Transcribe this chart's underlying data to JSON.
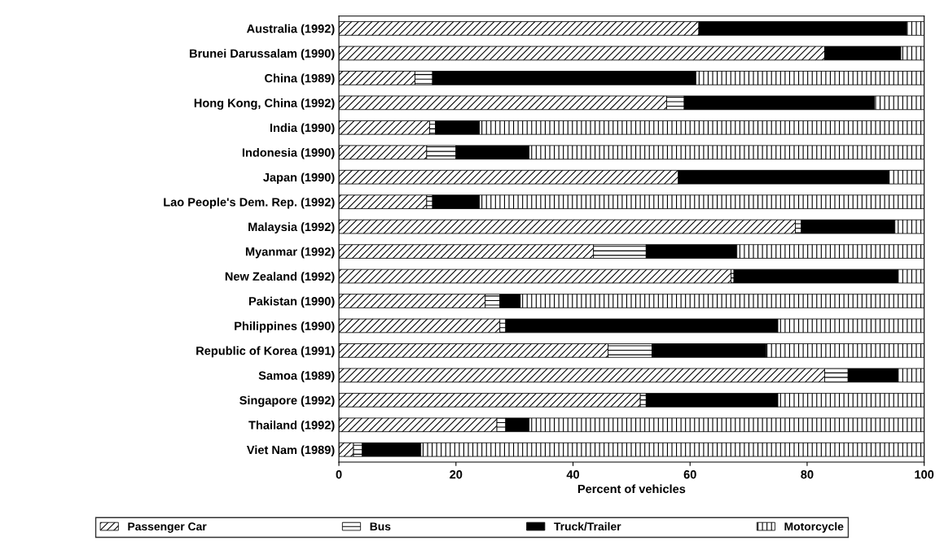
{
  "chart_data": {
    "type": "bar",
    "orientation": "horizontal",
    "stacked": true,
    "xlabel": "Percent of vehicles",
    "categories": [
      "Australia (1992)",
      "Brunei Darussalam (1990)",
      "China (1989)",
      "Hong Kong, China (1992)",
      "India (1990)",
      "Indonesia (1990)",
      "Japan (1990)",
      "Lao People's Dem. Rep. (1992)",
      "Malaysia (1992)",
      "Myanmar (1992)",
      "New Zealand (1992)",
      "Pakistan (1990)",
      "Philippines (1990)",
      "Republic of Korea (1991)",
      "Samoa (1989)",
      "Singapore (1992)",
      "Thailand (1992)",
      "Viet Nam (1989)"
    ],
    "series": [
      {
        "name": "Passenger Car",
        "color": "#000000",
        "values": [
          61.5,
          83,
          13,
          56,
          15.5,
          15,
          58,
          15,
          78,
          43.5,
          67,
          25,
          27.5,
          46,
          83,
          51.5,
          27,
          2.5
        ]
      },
      {
        "name": "Bus",
        "color": "#000000",
        "values": [
          null,
          null,
          3,
          3,
          1,
          5,
          null,
          1,
          1,
          9,
          0.5,
          2.5,
          1,
          7.5,
          4,
          1,
          1.5,
          1.5
        ]
      },
      {
        "name": "Truck/Trailer",
        "color": "#000000",
        "values": [
          35.5,
          13,
          45,
          32.5,
          7.5,
          12.5,
          36,
          8,
          16,
          15.5,
          28,
          3.5,
          46.5,
          19.5,
          8.5,
          22.5,
          4,
          10
        ]
      },
      {
        "name": "Motorcycle",
        "color": "#000000",
        "values": [
          3,
          4,
          39,
          8.5,
          76,
          67.5,
          6,
          76,
          5,
          32,
          4.5,
          69,
          25,
          27,
          4.5,
          25,
          67.5,
          86
        ]
      }
    ],
    "xlim": [
      0,
      100
    ],
    "xticks": [
      0,
      20,
      40,
      60,
      80,
      100
    ],
    "grid": false,
    "legend": "bottom"
  }
}
